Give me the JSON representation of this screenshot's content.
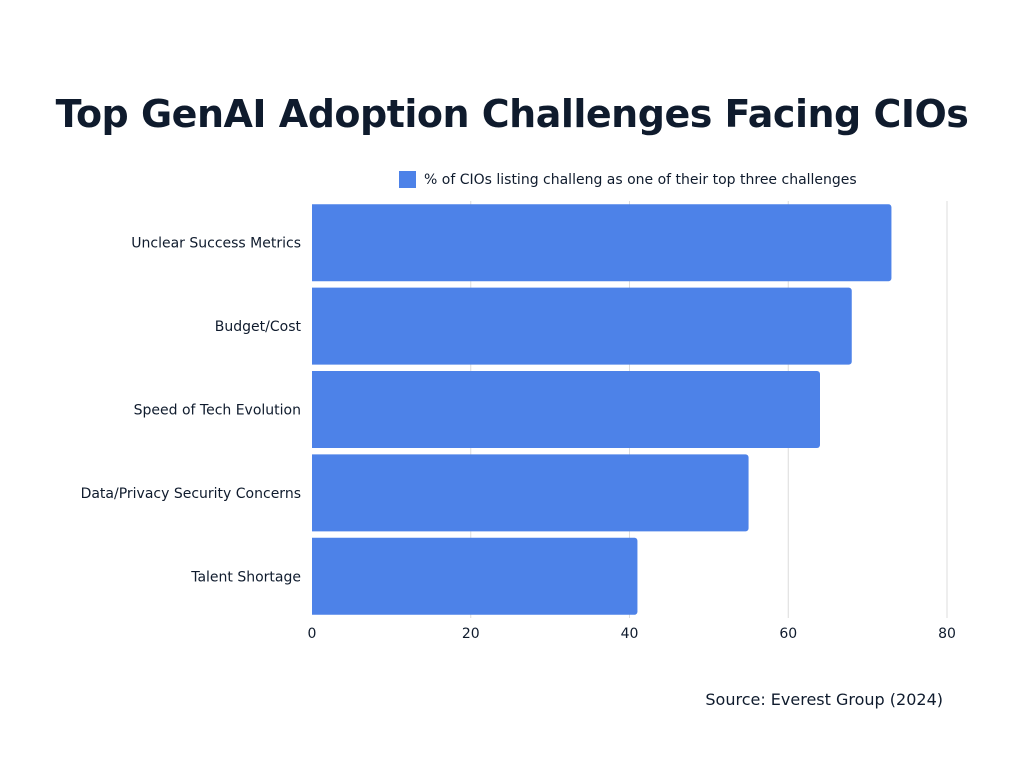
{
  "chart_data": {
    "type": "bar",
    "orientation": "horizontal",
    "title": "Top GenAI Adoption Challenges Facing CIOs",
    "categories": [
      "Unclear Success Metrics",
      "Budget/Cost",
      "Speed of Tech Evolution",
      "Data/Privacy Security Concerns",
      "Talent Shortage"
    ],
    "series": [
      {
        "name": "% of CIOs listing challeng as one of their top three challenges",
        "values": [
          73,
          68,
          64,
          55,
          41
        ],
        "color": "#4d82e8"
      }
    ],
    "xlim": [
      0,
      80
    ],
    "xticks": [
      0,
      20,
      40,
      60,
      80
    ],
    "grid": true,
    "legend_position": "top"
  },
  "source": "Source: Everest Group (2024)"
}
